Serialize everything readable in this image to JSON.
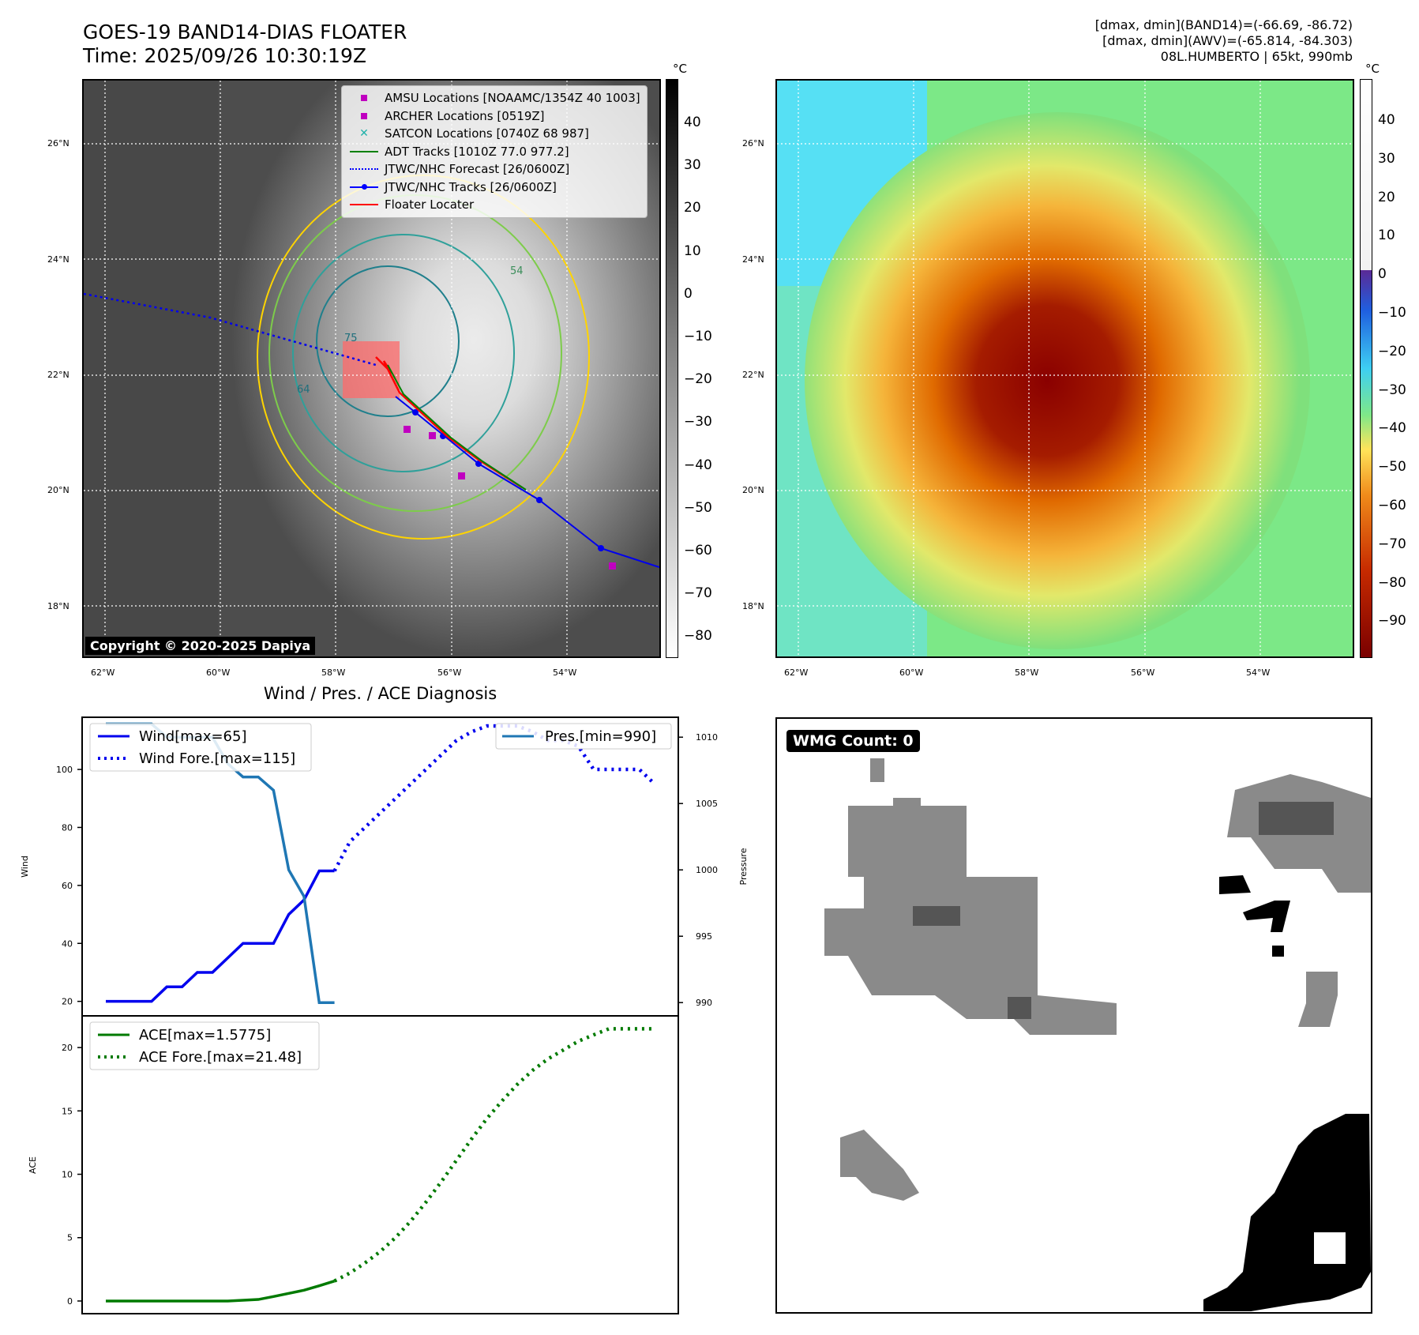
{
  "header": {
    "title_line1": "GOES-19 BAND14-DIAS FLOATER",
    "title_line2": "Time: 2025/09/26 10:30:19Z",
    "meta_line1": "[dmax, dmin](BAND14)=(-66.69, -86.72)",
    "meta_line2": "[dmax, dmin](AWV)=(-65.814, -84.303)",
    "meta_line3": "08L.HUMBERTO | 65kt, 990mb"
  },
  "map_axes": {
    "lon_labels": [
      "62°W",
      "60°W",
      "58°W",
      "56°W",
      "54°W"
    ],
    "lat_labels": [
      "26°N",
      "24°N",
      "22°N",
      "20°N",
      "18°N"
    ]
  },
  "ir_panel": {
    "unit": "°C",
    "colorbar_ticks": [
      "40",
      "30",
      "20",
      "10",
      "0",
      "−10",
      "−20",
      "−30",
      "−40",
      "−50",
      "−60",
      "−70",
      "−80"
    ],
    "copyright": "Copyright © 2020-2025 Dapiya",
    "legend": [
      {
        "label": "AMSU Locations [NOAAMC/1354Z 40 1003]",
        "symbol": "square",
        "color": "#c000c0"
      },
      {
        "label": "ARCHER Locations [0519Z]",
        "symbol": "square",
        "color": "#c000c0"
      },
      {
        "label": "SATCON Locations [0740Z 68 987]",
        "symbol": "cross",
        "color": "#20b2aa"
      },
      {
        "label": "ADT Tracks [1010Z 77.0 977.2]",
        "symbol": "line",
        "color": "#008000"
      },
      {
        "label": "JTWC/NHC Forecast [26/0600Z]",
        "symbol": "dotted",
        "color": "#0000ff"
      },
      {
        "label": "JTWC/NHC Tracks [26/0600Z]",
        "symbol": "linedot",
        "color": "#0000ff"
      },
      {
        "label": "Floater Locater",
        "symbol": "line",
        "color": "#ff0000"
      }
    ],
    "contour_labels": [
      "75",
      "64",
      "54"
    ]
  },
  "awv_panel": {
    "unit": "°C",
    "colorbar_ticks": [
      "40",
      "30",
      "20",
      "10",
      "0",
      "−10",
      "−20",
      "−30",
      "−40",
      "−50",
      "−60",
      "−70",
      "−80",
      "−90"
    ]
  },
  "diagnosis": {
    "title": "Wind / Pres. / ACE Diagnosis",
    "wind_ylabel": "Wind",
    "pres_ylabel": "Pressure",
    "ace_ylabel": "ACE",
    "wind_ticks": [
      "100",
      "80",
      "60",
      "40",
      "20"
    ],
    "pres_ticks": [
      "1010",
      "1005",
      "1000",
      "995",
      "990"
    ],
    "ace_ticks": [
      "20",
      "15",
      "10",
      "5",
      "0"
    ],
    "legend_wind": "Wind[max=65]",
    "legend_wind_fore": "Wind Fore.[max=115]",
    "legend_pres": "Pres.[min=990]",
    "legend_ace": "ACE[max=1.5775]",
    "legend_ace_fore": "ACE Fore.[max=21.48]"
  },
  "wmg_panel": {
    "label": "WMG Count: 0"
  },
  "chart_data": [
    {
      "type": "line",
      "title": "Wind / Pres. / ACE Diagnosis",
      "ylabel": "Wind",
      "ylim": [
        15,
        118
      ],
      "x": [
        0,
        1,
        2,
        3,
        4,
        5,
        6,
        7,
        8,
        9,
        10,
        11,
        12,
        13,
        14,
        15
      ],
      "series": [
        {
          "name": "Wind[max=65]",
          "color": "#0000ee",
          "style": "solid",
          "x": [
            0,
            1,
            2,
            3,
            4,
            5,
            6,
            7,
            8,
            9,
            10,
            11,
            12,
            13,
            14,
            15
          ],
          "values": [
            20,
            20,
            20,
            20,
            25,
            25,
            30,
            30,
            35,
            40,
            40,
            40,
            50,
            55,
            65,
            65
          ]
        }
      ]
    },
    {
      "type": "line",
      "ylabel": "Wind",
      "series": [
        {
          "name": "Wind Fore.[max=115]",
          "color": "#0000ee",
          "style": "dotted",
          "x": [
            15,
            16,
            17,
            18,
            19,
            20,
            21,
            22,
            23,
            24,
            25,
            26,
            27,
            28,
            29,
            30,
            31,
            32,
            33,
            34,
            35,
            36
          ],
          "values": [
            65,
            75,
            80,
            85,
            90,
            95,
            100,
            105,
            110,
            113,
            115,
            115,
            115,
            113,
            110,
            110,
            108,
            100,
            100,
            100,
            100,
            95
          ]
        }
      ]
    },
    {
      "type": "line",
      "ylabel": "Pressure",
      "ylim": [
        989,
        1011.5
      ],
      "series": [
        {
          "name": "Pres.[min=990]",
          "color": "#1f77b4",
          "style": "solid",
          "x": [
            0,
            1,
            2,
            3,
            4,
            5,
            6,
            7,
            8,
            9,
            10,
            11,
            12,
            13,
            14,
            15
          ],
          "values": [
            1011,
            1011,
            1011,
            1011,
            1010,
            1010,
            1010,
            1010,
            1008,
            1007,
            1007,
            1006,
            1000,
            998,
            990,
            990
          ]
        }
      ]
    },
    {
      "type": "line",
      "ylabel": "ACE",
      "ylim": [
        -1,
        22.5
      ],
      "series": [
        {
          "name": "ACE[max=1.5775]",
          "color": "#007a00",
          "style": "solid",
          "x": [
            0,
            2,
            4,
            6,
            8,
            10,
            11,
            12,
            13,
            14,
            15
          ],
          "values": [
            0,
            0,
            0,
            0,
            0,
            0.12,
            0.35,
            0.6,
            0.85,
            1.2,
            1.5775
          ]
        },
        {
          "name": "ACE Fore.[max=21.48]",
          "color": "#007a00",
          "style": "dotted",
          "x": [
            15,
            16,
            17,
            18,
            19,
            20,
            21,
            22,
            23,
            24,
            25,
            26,
            27,
            28,
            29,
            30,
            31,
            32,
            33,
            34,
            35,
            36
          ],
          "values": [
            1.5775,
            2.2,
            3.0,
            3.9,
            5.0,
            6.3,
            7.8,
            9.4,
            11.1,
            12.8,
            14.4,
            15.8,
            17.1,
            18.2,
            19.1,
            19.8,
            20.5,
            21.0,
            21.48,
            21.48,
            21.48,
            21.48
          ]
        }
      ]
    }
  ]
}
